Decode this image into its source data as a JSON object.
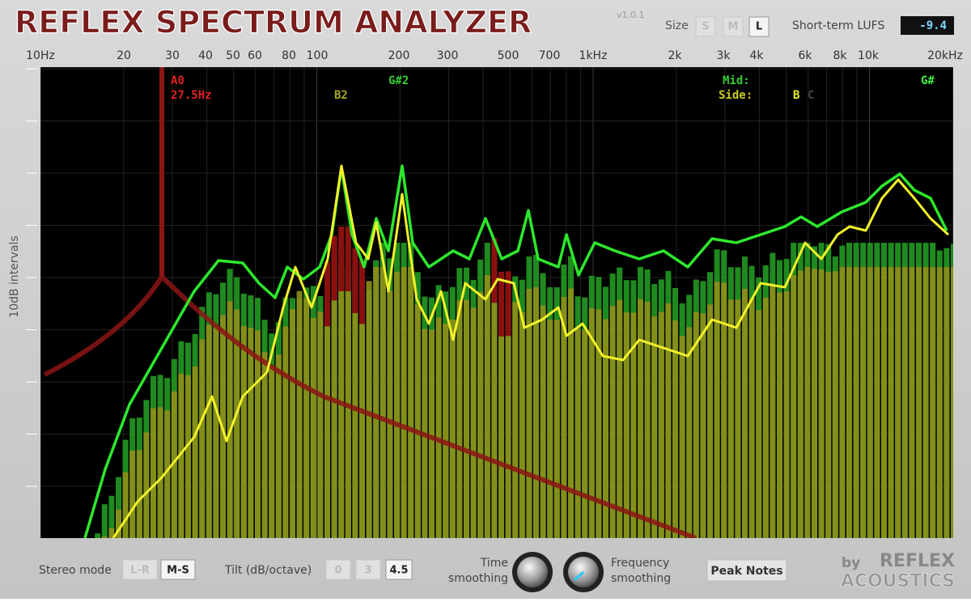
{
  "header": {
    "title": "REFLEX SPECTRUM ANALYZER",
    "version": "v1.0.1",
    "size_label": "Size",
    "size_options": [
      "S",
      "M",
      "L"
    ],
    "lufs_label": "Short-term LUFS",
    "lufs_value": "-9.4"
  },
  "frequency_axis": {
    "labels": [
      "10Hz",
      "20",
      "30",
      "40",
      "50",
      "60",
      "80",
      "100",
      "200",
      "300",
      "500",
      "700",
      "1kHz",
      "2k",
      "3k",
      "4k",
      "6k",
      "8k",
      "10k",
      "20kHz"
    ]
  },
  "y_axis_label": "10dB intervals",
  "annotations": {
    "note": "A0",
    "note_frequency": "27.5Hz",
    "marker_b2": "B2",
    "marker_g2": "G#2",
    "mid_label": "Mid:",
    "mid_note": "G#",
    "side_label": "Side:",
    "side_note": "B",
    "side_note_2": "C"
  },
  "controls": {
    "stereo_label": "Stereo mode",
    "stereo_options": [
      "L-R",
      "M-S"
    ],
    "tilt_label": "Tilt (dB/octave)",
    "tilt_options": [
      "0",
      "3",
      "4.5"
    ],
    "time_label": [
      "Time",
      "smoothing"
    ],
    "freq_label": [
      "Frequency",
      "smoothing"
    ],
    "peak_button": "Peak Notes",
    "brand_by": "by",
    "brand_name": "REFLEX",
    "brand_sub": "ACOUSTICS"
  }
}
